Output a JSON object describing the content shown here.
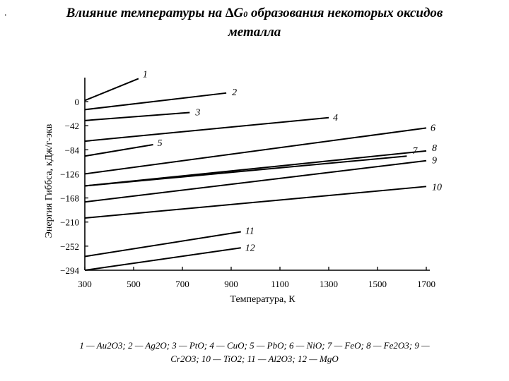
{
  "page": {
    "bullet": ".",
    "title_line1_a": "Влияние температуры на ∆G",
    "title_line1_sub": "0",
    "title_line1_b": " образования некоторых оксидов",
    "title_line2": "металла",
    "caption_line1": "1 — Au2O3; 2 — Ag2O; 3 — PtO; 4 — CuO; 5 — PbO; 6 — NiO; 7 — FeO; 8 — Fe2O3; 9 —",
    "caption_line2": "Cr2O3; 10 — TiO2; 11 — Al2O3; 12 — MgO"
  },
  "chart_data": {
    "type": "line",
    "xlabel": "Температура, К",
    "ylabel": "Энергия Гиббса, кДж/г-экв",
    "xlim": [
      300,
      1700
    ],
    "ylim": [
      -294,
      0
    ],
    "x_ticks": [
      300,
      500,
      700,
      900,
      1100,
      1300,
      1500,
      1700
    ],
    "y_ticks": [
      0,
      -42,
      -84,
      -126,
      -168,
      -210,
      -252,
      -294
    ],
    "grid": false,
    "series": [
      {
        "name": "1",
        "x": [
          300,
          520
        ],
        "y": [
          2,
          40
        ]
      },
      {
        "name": "2",
        "x": [
          300,
          880
        ],
        "y": [
          -14,
          15
        ]
      },
      {
        "name": "3",
        "x": [
          300,
          730
        ],
        "y": [
          -33,
          -19
        ]
      },
      {
        "name": "4",
        "x": [
          300,
          1300
        ],
        "y": [
          -69,
          -28
        ]
      },
      {
        "name": "5",
        "x": [
          300,
          580
        ],
        "y": [
          -95,
          -75
        ]
      },
      {
        "name": "6",
        "x": [
          300,
          1700
        ],
        "y": [
          -126,
          -46
        ]
      },
      {
        "name": "7",
        "x": [
          300,
          1620
        ],
        "y": [
          -147,
          -95
        ]
      },
      {
        "name": "8",
        "x": [
          300,
          1700
        ],
        "y": [
          -147,
          -86
        ]
      },
      {
        "name": "9",
        "x": [
          300,
          1700
        ],
        "y": [
          -175,
          -103
        ]
      },
      {
        "name": "10",
        "x": [
          300,
          1700
        ],
        "y": [
          -203,
          -148
        ]
      },
      {
        "name": "11",
        "x": [
          300,
          940
        ],
        "y": [
          -270,
          -227
        ]
      },
      {
        "name": "12",
        "x": [
          300,
          940
        ],
        "y": [
          -294,
          -255
        ]
      }
    ]
  }
}
